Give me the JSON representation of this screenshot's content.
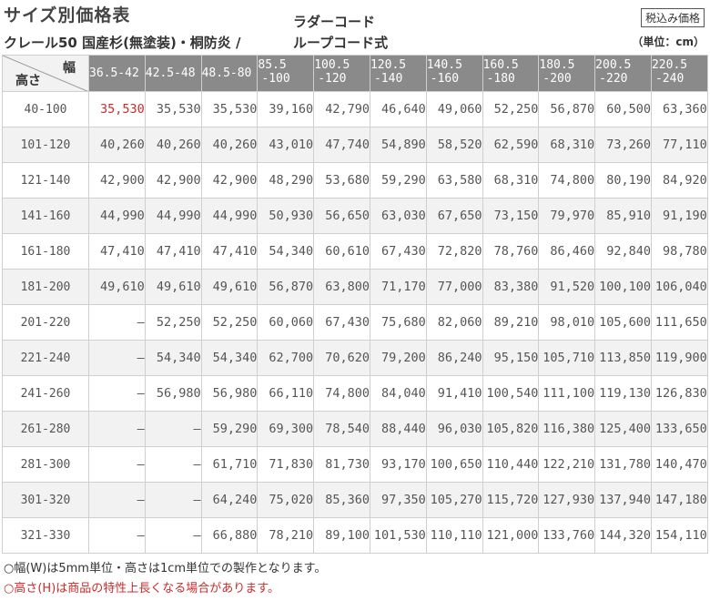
{
  "header": {
    "title": "サイズ別価格表",
    "subtitle": "クレール50 国産杉(無塗装)・桐防炎 /",
    "cord_top": "ラダーコード",
    "cord_bottom": "ループコード式",
    "tax_badge": "税込み価格",
    "unit": "（単位：cm）"
  },
  "table": {
    "corner_width_label": "幅",
    "corner_height_label": "高さ",
    "columns": [
      [
        "36.5-42"
      ],
      [
        "42.5-48"
      ],
      [
        "48.5-80"
      ],
      [
        "85.5",
        "-100"
      ],
      [
        "100.5",
        "-120"
      ],
      [
        "120.5",
        "-140"
      ],
      [
        "140.5",
        "-160"
      ],
      [
        "160.5",
        "-180"
      ],
      [
        "180.5",
        "-200"
      ],
      [
        "200.5",
        "-220"
      ],
      [
        "220.5",
        "-240"
      ]
    ],
    "rows": [
      {
        "height": "40-100",
        "prices": [
          "35,530",
          "35,530",
          "35,530",
          "39,160",
          "42,790",
          "46,640",
          "49,060",
          "52,250",
          "56,870",
          "60,500",
          "63,360"
        ]
      },
      {
        "height": "101-120",
        "prices": [
          "40,260",
          "40,260",
          "40,260",
          "43,010",
          "47,740",
          "54,890",
          "58,520",
          "62,590",
          "68,310",
          "73,260",
          "77,110"
        ]
      },
      {
        "height": "121-140",
        "prices": [
          "42,900",
          "42,900",
          "42,900",
          "48,290",
          "53,680",
          "59,290",
          "63,580",
          "68,310",
          "74,800",
          "80,190",
          "84,920"
        ]
      },
      {
        "height": "141-160",
        "prices": [
          "44,990",
          "44,990",
          "44,990",
          "50,930",
          "56,650",
          "63,030",
          "67,650",
          "73,150",
          "79,970",
          "85,910",
          "91,190"
        ]
      },
      {
        "height": "161-180",
        "prices": [
          "47,410",
          "47,410",
          "47,410",
          "54,340",
          "60,610",
          "67,430",
          "72,820",
          "78,760",
          "86,460",
          "92,840",
          "98,780"
        ]
      },
      {
        "height": "181-200",
        "prices": [
          "49,610",
          "49,610",
          "49,610",
          "56,870",
          "63,800",
          "71,170",
          "77,000",
          "83,380",
          "91,520",
          "100,100",
          "106,040"
        ]
      },
      {
        "height": "201-220",
        "prices": [
          "—",
          "52,250",
          "52,250",
          "60,060",
          "67,430",
          "75,680",
          "82,060",
          "89,210",
          "98,010",
          "105,600",
          "111,650"
        ]
      },
      {
        "height": "221-240",
        "prices": [
          "—",
          "54,340",
          "54,340",
          "62,700",
          "70,620",
          "79,200",
          "86,240",
          "95,150",
          "105,710",
          "113,850",
          "119,900"
        ]
      },
      {
        "height": "241-260",
        "prices": [
          "—",
          "56,980",
          "56,980",
          "66,110",
          "74,800",
          "84,040",
          "91,410",
          "100,540",
          "111,100",
          "119,130",
          "126,830"
        ]
      },
      {
        "height": "261-280",
        "prices": [
          "—",
          "—",
          "59,290",
          "69,300",
          "78,540",
          "88,440",
          "96,030",
          "105,820",
          "116,380",
          "125,400",
          "133,650"
        ]
      },
      {
        "height": "281-300",
        "prices": [
          "—",
          "—",
          "61,710",
          "71,830",
          "81,730",
          "93,170",
          "100,650",
          "110,440",
          "122,210",
          "131,780",
          "140,470"
        ]
      },
      {
        "height": "301-320",
        "prices": [
          "—",
          "—",
          "64,240",
          "75,020",
          "85,360",
          "97,350",
          "105,270",
          "115,720",
          "127,930",
          "137,940",
          "147,180"
        ]
      },
      {
        "height": "321-330",
        "prices": [
          "—",
          "—",
          "66,880",
          "78,210",
          "89,100",
          "101,530",
          "110,110",
          "121,000",
          "133,760",
          "144,320",
          "154,110"
        ]
      }
    ]
  },
  "notes": [
    "○幅(W)は5mm単位・高さは1cm単位での製作となります。",
    "○高さ(H)は商品の特性上長くなる場合があります。"
  ],
  "colors": {
    "header_bg": "#8a8a8a",
    "shade_bg": "#f2f2f2",
    "highlight": "#cc2b2b"
  }
}
